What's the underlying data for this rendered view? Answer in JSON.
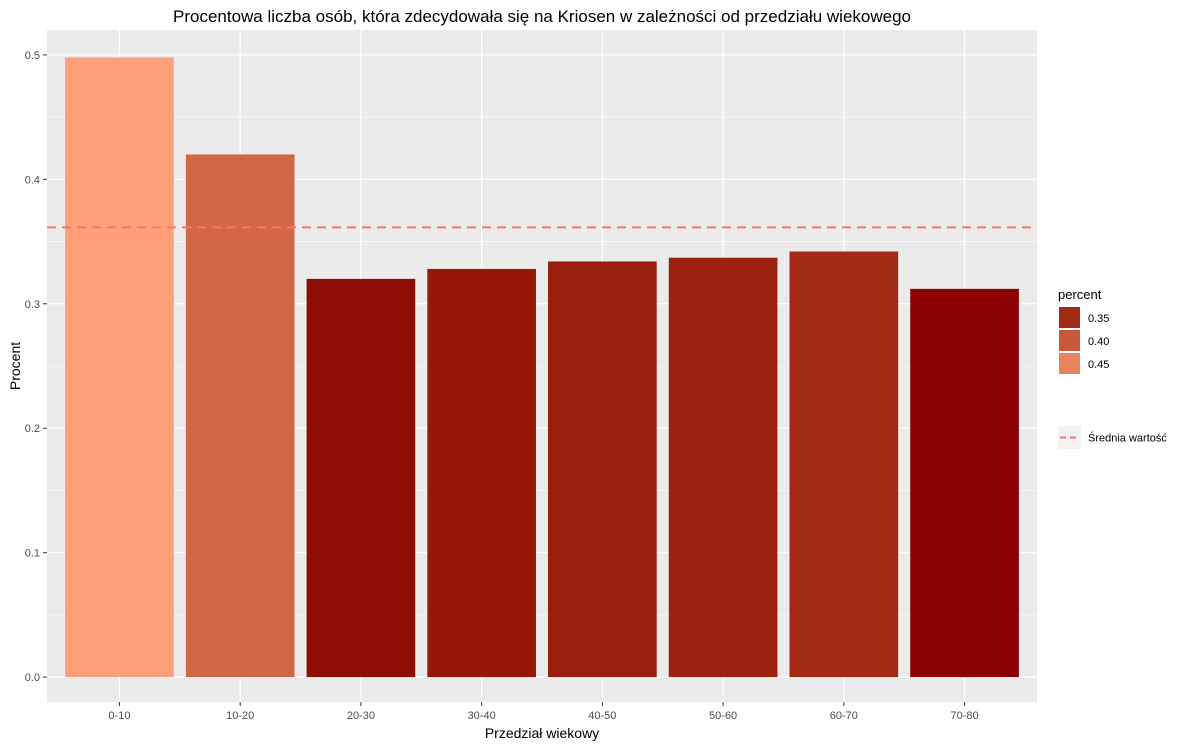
{
  "chart_data": {
    "type": "bar",
    "title": "Procentowa liczba osób, która zdecydowała się na Kriosen w zależności od przedziału wiekowego",
    "xlabel": "Przedział wiekowy",
    "ylabel": "Procent",
    "categories": [
      "0-10",
      "10-20",
      "20-30",
      "30-40",
      "40-50",
      "50-60",
      "60-70",
      "70-80"
    ],
    "values": [
      0.498,
      0.42,
      0.32,
      0.328,
      0.334,
      0.337,
      0.342,
      0.312
    ],
    "colors": [
      "#ffa07a",
      "#d26745",
      "#8e0e05",
      "#961706",
      "#9a1e0b",
      "#9c2210",
      "#a12a14",
      "#8b0000"
    ],
    "ylim": [
      -0.02,
      0.52
    ],
    "yticks": [
      0.0,
      0.1,
      0.2,
      0.3,
      0.4,
      0.5
    ],
    "ytick_labels": [
      "0.0",
      "0.1",
      "0.2",
      "0.3",
      "0.4",
      "0.5"
    ],
    "mean_line": {
      "value": 0.3614,
      "color": "#f8766d",
      "label": "Średnia wartość"
    },
    "legend": {
      "title": "percent",
      "placement": "right",
      "entries": [
        {
          "label": "0.35",
          "color": "#a12a14"
        },
        {
          "label": "0.40",
          "color": "#c8583a"
        },
        {
          "label": "0.45",
          "color": "#e8825f"
        }
      ]
    },
    "grid": true
  }
}
